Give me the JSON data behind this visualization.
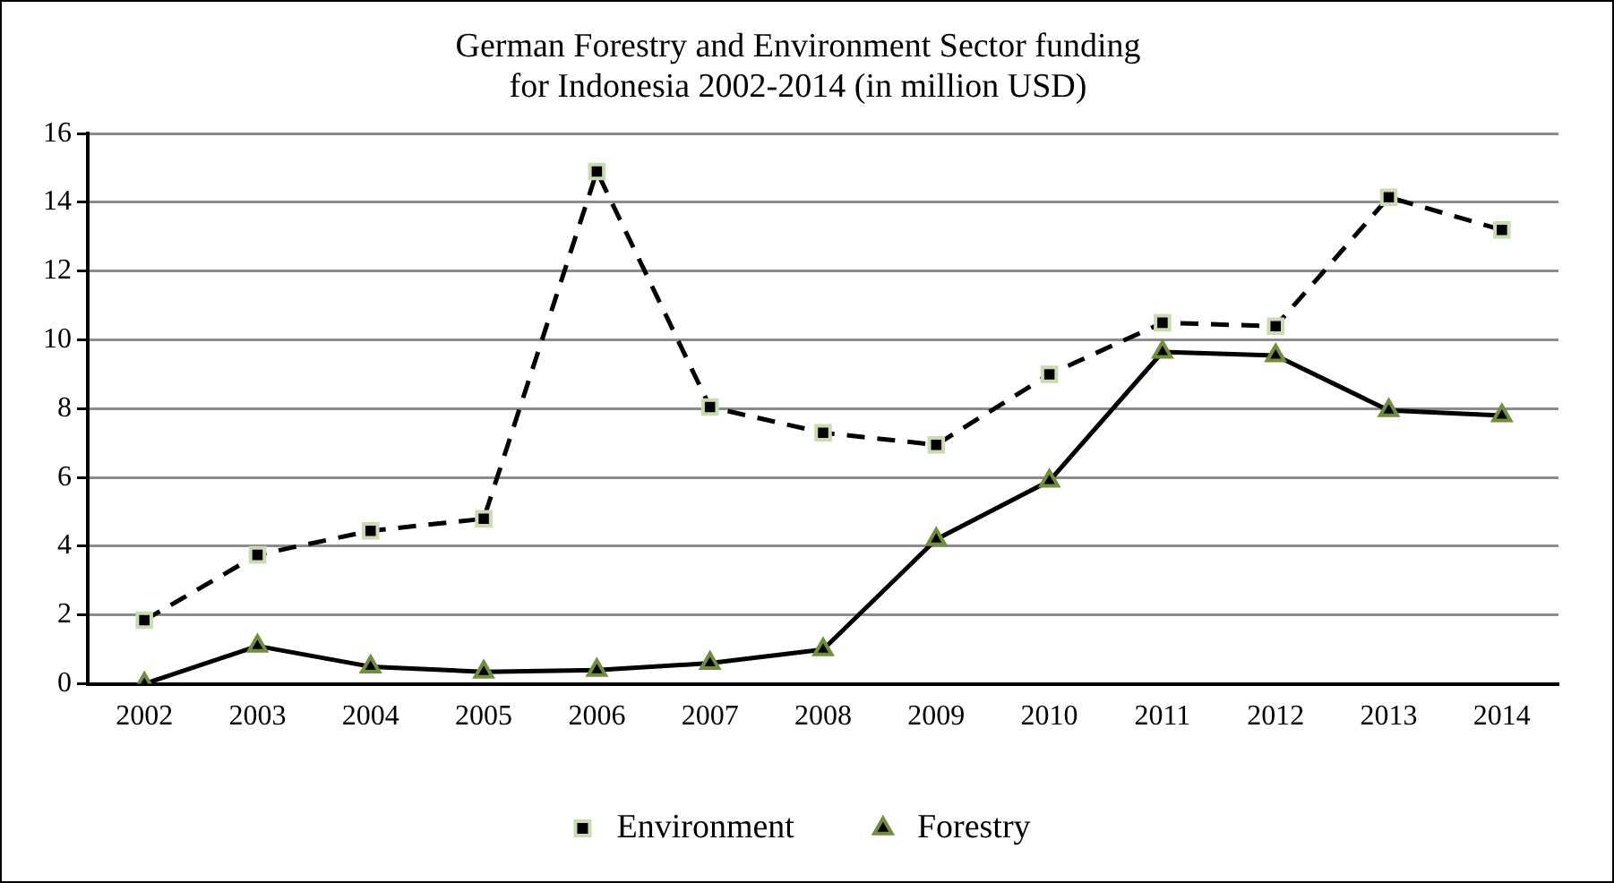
{
  "chart_data": {
    "type": "line",
    "title": "German Forestry and Environment Sector funding\nfor Indonesia 2002-2014 (in million USD)",
    "categories": [
      "2002",
      "2003",
      "2004",
      "2005",
      "2006",
      "2007",
      "2008",
      "2009",
      "2010",
      "2011",
      "2012",
      "2013",
      "2014"
    ],
    "series": [
      {
        "name": "Environment",
        "color": "#000000",
        "marker": "square",
        "line_style": "dashed",
        "values": [
          1.85,
          3.75,
          4.45,
          4.8,
          14.9,
          8.05,
          7.3,
          6.95,
          9.0,
          10.5,
          10.4,
          14.15,
          13.2
        ]
      },
      {
        "name": "Forestry",
        "color": "#000000",
        "marker": "triangle",
        "line_style": "solid",
        "values": [
          0,
          1.1,
          0.5,
          0.35,
          0.4,
          0.6,
          1.0,
          4.2,
          5.9,
          9.65,
          9.55,
          7.95,
          7.8
        ]
      }
    ],
    "ylim": [
      0,
      16
    ],
    "yticks": [
      0,
      2,
      4,
      6,
      8,
      10,
      12,
      14,
      16
    ],
    "grid": "y",
    "legend": "bottom"
  }
}
